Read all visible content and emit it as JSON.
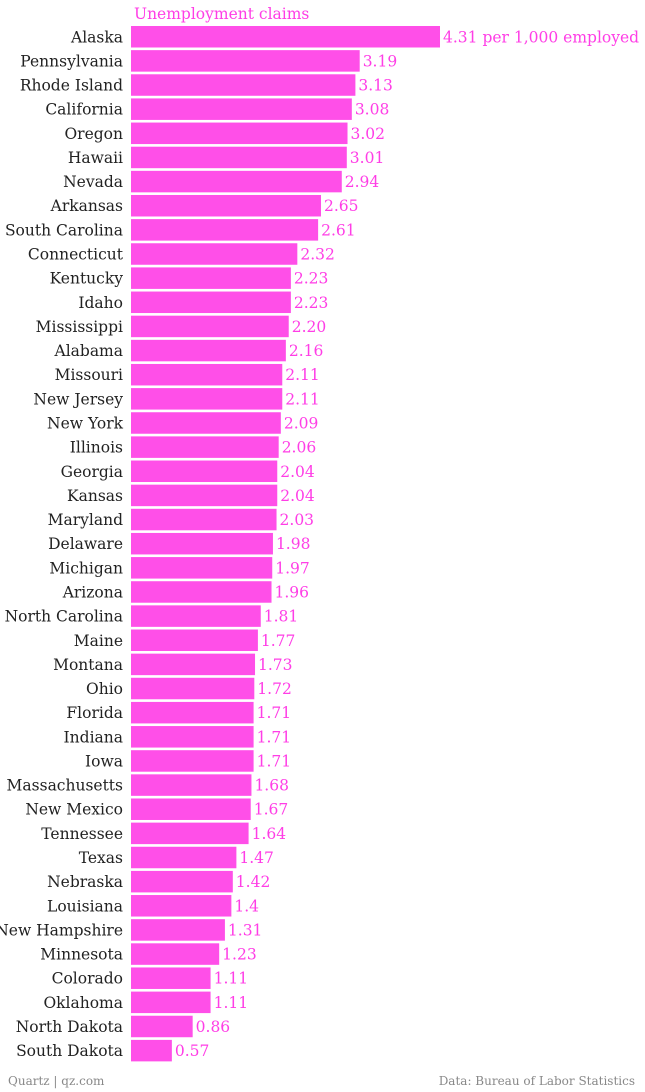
{
  "colors": {
    "bar": "#ff4fe8",
    "label": "#ff3ee6",
    "text": "#222222"
  },
  "footer": {
    "source_left": "Quartz | qz.com",
    "source_right": "Data: Bureau of Labor Statistics"
  },
  "chart_data": {
    "type": "bar",
    "orientation": "horizontal",
    "title": "Unemployment claims",
    "first_value_suffix": " per 1,000 employed",
    "categories": [
      "Alaska",
      "Pennsylvania",
      "Rhode Island",
      "California",
      "Oregon",
      "Hawaii",
      "Nevada",
      "Arkansas",
      "South Carolina",
      "Connecticut",
      "Kentucky",
      "Idaho",
      "Mississippi",
      "Alabama",
      "Missouri",
      "New Jersey",
      "New York",
      "Illinois",
      "Georgia",
      "Kansas",
      "Maryland",
      "Delaware",
      "Michigan",
      "Arizona",
      "North Carolina",
      "Maine",
      "Montana",
      "Ohio",
      "Florida",
      "Indiana",
      "Iowa",
      "Massachusetts",
      "New Mexico",
      "Tennessee",
      "Texas",
      "Nebraska",
      "Louisiana",
      "New Hampshire",
      "Minnesota",
      "Colorado",
      "Oklahoma",
      "North Dakota",
      "South Dakota"
    ],
    "values": [
      4.31,
      3.19,
      3.13,
      3.08,
      3.02,
      3.01,
      2.94,
      2.65,
      2.61,
      2.32,
      2.23,
      2.23,
      2.2,
      2.16,
      2.11,
      2.11,
      2.09,
      2.06,
      2.04,
      2.04,
      2.03,
      1.98,
      1.97,
      1.96,
      1.81,
      1.77,
      1.73,
      1.72,
      1.71,
      1.71,
      1.71,
      1.68,
      1.67,
      1.64,
      1.47,
      1.42,
      1.4,
      1.31,
      1.23,
      1.11,
      1.11,
      0.86,
      0.57
    ],
    "value_labels": [
      "4.31",
      "3.19",
      "3.13",
      "3.08",
      "3.02",
      "3.01",
      "2.94",
      "2.65",
      "2.61",
      "2.32",
      "2.23",
      "2.23",
      "2.20",
      "2.16",
      "2.11",
      "2.11",
      "2.09",
      "2.06",
      "2.04",
      "2.04",
      "2.03",
      "1.98",
      "1.97",
      "1.96",
      "1.81",
      "1.77",
      "1.73",
      "1.72",
      "1.71",
      "1.71",
      "1.71",
      "1.68",
      "1.67",
      "1.64",
      "1.47",
      "1.42",
      "1.4",
      "1.31",
      "1.23",
      "1.11",
      "1.11",
      "0.86",
      "0.57"
    ],
    "xlim": [
      0,
      4.31
    ],
    "grid": false
  }
}
